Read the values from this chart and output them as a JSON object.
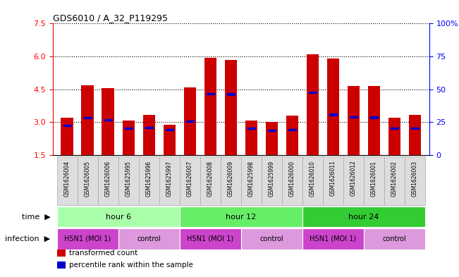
{
  "title": "GDS6010 / A_32_P119295",
  "samples": [
    "GSM1626004",
    "GSM1626005",
    "GSM1626006",
    "GSM1625995",
    "GSM1625996",
    "GSM1625997",
    "GSM1626007",
    "GSM1626008",
    "GSM1626009",
    "GSM1625998",
    "GSM1625999",
    "GSM1626000",
    "GSM1626010",
    "GSM1626011",
    "GSM1626012",
    "GSM1626001",
    "GSM1626002",
    "GSM1626003"
  ],
  "bar_heights": [
    3.2,
    4.7,
    4.55,
    3.08,
    3.35,
    2.9,
    4.6,
    5.95,
    5.85,
    3.08,
    3.02,
    3.3,
    6.1,
    5.9,
    4.65,
    4.65,
    3.2,
    3.35
  ],
  "blue_positions": [
    2.85,
    3.2,
    3.12,
    2.72,
    2.75,
    2.65,
    3.05,
    4.3,
    4.28,
    2.72,
    2.62,
    2.65,
    4.35,
    3.35,
    3.25,
    3.22,
    2.72,
    2.72
  ],
  "ylim_left": [
    1.5,
    7.5
  ],
  "ylim_right": [
    0,
    100
  ],
  "yticks_left": [
    1.5,
    3.0,
    4.5,
    6.0,
    7.5
  ],
  "yticks_right": [
    0,
    25,
    50,
    75,
    100
  ],
  "bar_color": "#cc0000",
  "blue_color": "#0000cc",
  "bar_width": 0.6,
  "time_groups": [
    {
      "label": "hour 6",
      "start": 0,
      "end": 6,
      "color": "#aaffaa"
    },
    {
      "label": "hour 12",
      "start": 6,
      "end": 12,
      "color": "#66ee66"
    },
    {
      "label": "hour 24",
      "start": 12,
      "end": 18,
      "color": "#33cc33"
    }
  ],
  "infection_groups": [
    {
      "label": "H5N1 (MOI 1)",
      "start": 0,
      "end": 3,
      "color": "#cc44cc"
    },
    {
      "label": "control",
      "start": 3,
      "end": 6,
      "color": "#dd99dd"
    },
    {
      "label": "H5N1 (MOI 1)",
      "start": 6,
      "end": 9,
      "color": "#cc44cc"
    },
    {
      "label": "control",
      "start": 9,
      "end": 12,
      "color": "#dd99dd"
    },
    {
      "label": "H5N1 (MOI 1)",
      "start": 12,
      "end": 15,
      "color": "#cc44cc"
    },
    {
      "label": "control",
      "start": 15,
      "end": 18,
      "color": "#dd99dd"
    }
  ],
  "legend_items": [
    {
      "label": "transformed count",
      "color": "#cc0000"
    },
    {
      "label": "percentile rank within the sample",
      "color": "#0000cc"
    }
  ],
  "background_color": "#ffffff",
  "sample_cell_color": "#dddddd",
  "sample_cell_border": "#aaaaaa"
}
